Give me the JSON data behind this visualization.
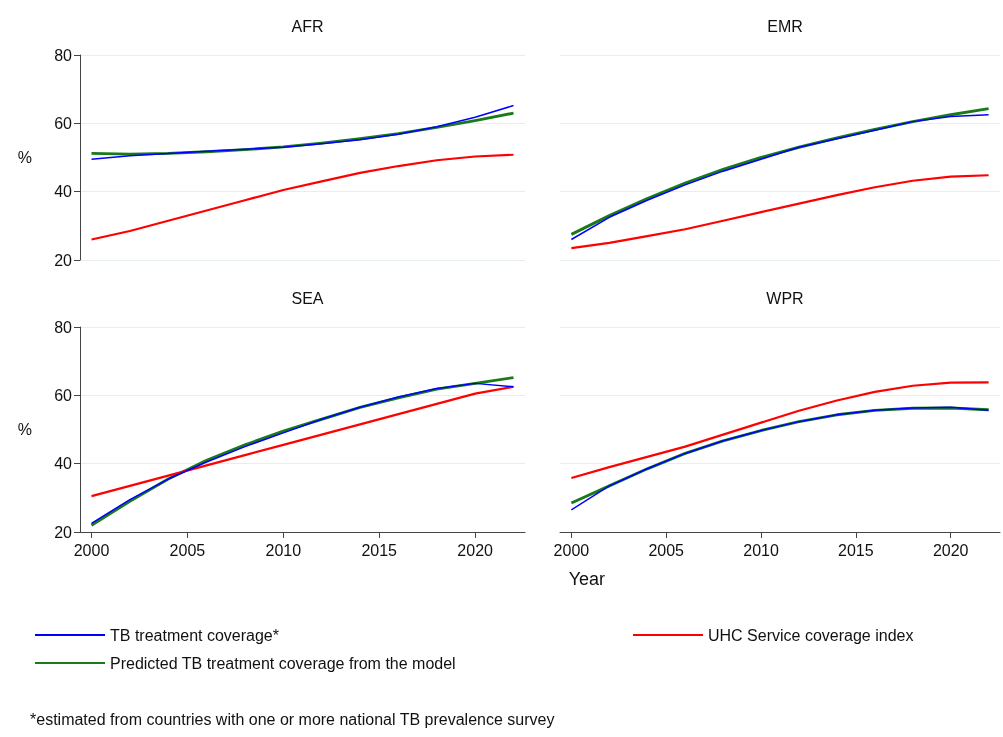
{
  "chart_data": [
    {
      "type": "line",
      "title": "AFR",
      "ylabel": "%",
      "x": [
        2000,
        2002,
        2004,
        2006,
        2008,
        2010,
        2012,
        2014,
        2016,
        2018,
        2020,
        2022
      ],
      "xlim": [
        1999.4,
        2022.6
      ],
      "xticks": [
        2000,
        2005,
        2010,
        2015,
        2020
      ],
      "ylim": [
        20,
        80
      ],
      "yticks": [
        20,
        40,
        60,
        80
      ],
      "grid": "y",
      "tick_labels": "y",
      "marker": "none",
      "series": [
        {
          "color": "#0000ff",
          "values": [
            49.5,
            50.5,
            51.2,
            51.8,
            52.4,
            53.0,
            54.0,
            55.2,
            56.8,
            59.0,
            61.8,
            65.2
          ]
        },
        {
          "color": "#ff0000",
          "values": [
            26,
            28.5,
            31.5,
            34.5,
            37.5,
            40.5,
            43,
            45.5,
            47.5,
            49.2,
            50.3,
            50.8
          ]
        },
        {
          "color": "#1a7a1a",
          "values": [
            51.2,
            51.0,
            51.2,
            51.7,
            52.3,
            53.1,
            54.2,
            55.5,
            57.0,
            58.8,
            60.8,
            63.0
          ]
        }
      ]
    },
    {
      "type": "line",
      "title": "EMR",
      "x": [
        2000,
        2002,
        2004,
        2006,
        2008,
        2010,
        2012,
        2014,
        2016,
        2018,
        2020,
        2022
      ],
      "xlim": [
        1999.4,
        2022.6
      ],
      "xticks": [
        2000,
        2005,
        2010,
        2015,
        2020
      ],
      "ylim": [
        20,
        80
      ],
      "yticks": [
        20,
        40,
        60,
        80
      ],
      "grid": "y",
      "tick_labels": false,
      "marker": "none",
      "series": [
        {
          "color": "#0000ff",
          "values": [
            26,
            32.5,
            37.5,
            42,
            46,
            49.5,
            53,
            55.5,
            58,
            60.5,
            62,
            62.5
          ]
        },
        {
          "color": "#ff0000",
          "values": [
            23.5,
            25,
            27,
            29,
            31.5,
            34,
            36.5,
            39,
            41.3,
            43.2,
            44.4,
            44.8
          ]
        },
        {
          "color": "#1a7a1a",
          "values": [
            27.5,
            33,
            38,
            42.5,
            46.5,
            50,
            53,
            55.7,
            58.2,
            60.5,
            62.5,
            64.3
          ]
        }
      ]
    },
    {
      "type": "line",
      "title": "SEA",
      "ylabel": "%",
      "x": [
        2000,
        2002,
        2004,
        2006,
        2008,
        2010,
        2012,
        2014,
        2016,
        2018,
        2020,
        2022
      ],
      "xlim": [
        1999.4,
        2022.6
      ],
      "xticks": [
        2000,
        2005,
        2010,
        2015,
        2020
      ],
      "ylim": [
        20,
        80
      ],
      "yticks": [
        20,
        40,
        60,
        80
      ],
      "grid": "y",
      "marker": "none",
      "legend": "bottom",
      "annotations": [
        "*estimated from countries with one or more national TB prevalence survey"
      ],
      "series": [
        {
          "name": "TB treatment coverage*",
          "color": "#0000ff",
          "values": [
            22.5,
            29.5,
            35.5,
            40.5,
            45,
            49,
            53,
            56.5,
            59.5,
            62,
            63.5,
            62.5
          ]
        },
        {
          "name": "UHC Service coverage index",
          "color": "#ff0000",
          "values": [
            30.5,
            33.5,
            36.5,
            39.5,
            42.5,
            45.5,
            48.5,
            51.5,
            54.5,
            57.5,
            60.5,
            62.5
          ]
        },
        {
          "name": "Predicted TB treatment coverage from the model",
          "color": "#1a7a1a",
          "values": [
            22,
            29,
            35.5,
            41,
            45.5,
            49.5,
            53,
            56.5,
            59.3,
            61.8,
            63.5,
            65.2
          ]
        }
      ]
    },
    {
      "type": "line",
      "title": "WPR",
      "xlabel": "Year",
      "x": [
        2000,
        2002,
        2004,
        2006,
        2008,
        2010,
        2012,
        2014,
        2016,
        2018,
        2020,
        2022
      ],
      "xlim": [
        1999.4,
        2022.6
      ],
      "xticks": [
        2000,
        2005,
        2010,
        2015,
        2020
      ],
      "ylim": [
        20,
        80
      ],
      "yticks": [
        20,
        40,
        60,
        80
      ],
      "grid": "y",
      "tick_labels": "x",
      "marker": "none",
      "series": [
        {
          "color": "#0000ff",
          "values": [
            26.5,
            33.5,
            38.5,
            43,
            46.7,
            49.7,
            52.3,
            54.3,
            55.6,
            56.3,
            56.5,
            55.6
          ]
        },
        {
          "color": "#ff0000",
          "values": [
            35.8,
            39,
            42,
            45,
            48.5,
            52,
            55.5,
            58.5,
            61,
            62.8,
            63.7,
            63.8
          ]
        },
        {
          "color": "#1a7a1a",
          "values": [
            28.5,
            33.5,
            38.5,
            43,
            46.7,
            49.7,
            52.3,
            54.3,
            55.6,
            56.2,
            56.3,
            55.8
          ]
        }
      ]
    }
  ]
}
